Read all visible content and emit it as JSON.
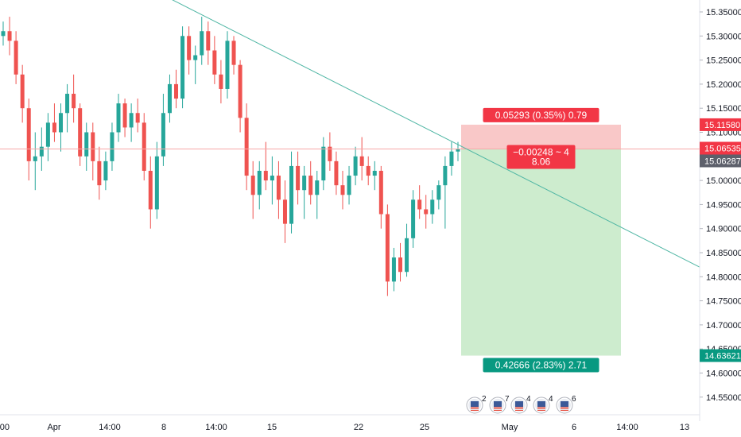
{
  "chart_data": {
    "type": "candlestick",
    "y_axis": {
      "ticks": [
        "15.35000",
        "15.30000",
        "15.25000",
        "15.20000",
        "15.15000",
        "15.10000",
        "15.05000",
        "15.00000",
        "14.95000",
        "14.90000",
        "14.85000",
        "14.80000",
        "14.75000",
        "14.70000",
        "14.65000",
        "14.60000",
        "14.55000"
      ],
      "range": [
        14.5,
        15.37
      ]
    },
    "x_axis": {
      "ticks": [
        "00",
        "Apr",
        "14:00",
        "8",
        "14:00",
        "15",
        "22",
        "25",
        "May",
        "6",
        "14:00",
        "13"
      ]
    },
    "price_labels": {
      "stop": "15.11580",
      "entry": "15.06535",
      "last": "15.06287",
      "target": "14.63621"
    },
    "position": {
      "stop_text": "0.05293 (0.35%) 0.79",
      "center_text_1": "−0.00248 ~ 4",
      "center_text_2": "8.06",
      "target_text": "0.42666 (2.83%) 2.71",
      "stop": 15.1158,
      "entry": 15.06535,
      "target": 14.63621
    },
    "trendline": {
      "start": 15.385,
      "end": 14.82
    },
    "candles": [
      [
        15.3,
        15.33,
        15.28,
        15.31
      ],
      [
        15.31,
        15.34,
        15.26,
        15.29
      ],
      [
        15.29,
        15.31,
        15.2,
        15.22
      ],
      [
        15.22,
        15.24,
        15.12,
        15.15
      ],
      [
        15.15,
        15.17,
        15.0,
        15.04
      ],
      [
        15.04,
        15.1,
        14.98,
        15.05
      ],
      [
        15.05,
        15.11,
        15.02,
        15.07
      ],
      [
        15.07,
        15.14,
        15.04,
        15.12
      ],
      [
        15.12,
        15.16,
        15.08,
        15.1
      ],
      [
        15.1,
        15.16,
        15.06,
        15.14
      ],
      [
        15.14,
        15.2,
        15.1,
        15.18
      ],
      [
        15.18,
        15.22,
        15.12,
        15.15
      ],
      [
        15.15,
        15.16,
        15.03,
        15.05
      ],
      [
        15.05,
        15.12,
        15.02,
        15.1
      ],
      [
        15.1,
        15.12,
        15.0,
        15.04
      ],
      [
        15.04,
        15.07,
        14.96,
        14.99
      ],
      [
        15.0,
        15.06,
        14.98,
        15.04
      ],
      [
        15.04,
        15.12,
        15.02,
        15.1
      ],
      [
        15.1,
        15.18,
        15.08,
        15.16
      ],
      [
        15.16,
        15.17,
        15.09,
        15.11
      ],
      [
        15.11,
        15.16,
        15.08,
        15.14
      ],
      [
        15.14,
        15.17,
        15.1,
        15.12
      ],
      [
        15.12,
        15.14,
        15.0,
        15.02
      ],
      [
        15.02,
        15.05,
        14.9,
        14.94
      ],
      [
        14.94,
        15.08,
        14.92,
        15.05
      ],
      [
        15.05,
        15.18,
        15.03,
        15.14
      ],
      [
        15.14,
        15.22,
        15.12,
        15.2
      ],
      [
        15.2,
        15.23,
        15.15,
        15.17
      ],
      [
        15.17,
        15.32,
        15.15,
        15.3
      ],
      [
        15.3,
        15.32,
        15.22,
        15.25
      ],
      [
        15.25,
        15.28,
        15.2,
        15.26
      ],
      [
        15.26,
        15.34,
        15.24,
        15.31
      ],
      [
        15.31,
        15.33,
        15.24,
        15.27
      ],
      [
        15.27,
        15.3,
        15.2,
        15.22
      ],
      [
        15.22,
        15.25,
        15.16,
        15.19
      ],
      [
        15.19,
        15.31,
        15.17,
        15.29
      ],
      [
        15.29,
        15.3,
        15.22,
        15.24
      ],
      [
        15.24,
        15.25,
        15.1,
        15.13
      ],
      [
        15.13,
        15.16,
        14.98,
        15.01
      ],
      [
        15.01,
        15.04,
        14.92,
        14.97
      ],
      [
        14.97,
        15.04,
        14.94,
        15.02
      ],
      [
        15.02,
        15.08,
        14.98,
        15.0
      ],
      [
        15.0,
        15.05,
        14.95,
        15.01
      ],
      [
        15.01,
        15.04,
        14.92,
        14.96
      ],
      [
        14.96,
        15.0,
        14.87,
        14.91
      ],
      [
        14.91,
        15.06,
        14.89,
        15.03
      ],
      [
        15.03,
        15.06,
        14.95,
        14.98
      ],
      [
        14.98,
        15.03,
        14.92,
        15.01
      ],
      [
        15.01,
        15.04,
        14.95,
        14.97
      ],
      [
        14.97,
        15.02,
        14.92,
        15.0
      ],
      [
        15.0,
        15.09,
        14.98,
        15.07
      ],
      [
        15.07,
        15.1,
        15.02,
        15.04
      ],
      [
        15.04,
        15.06,
        14.97,
        14.99
      ],
      [
        14.99,
        15.02,
        14.94,
        14.97
      ],
      [
        14.97,
        15.03,
        14.95,
        15.01
      ],
      [
        15.01,
        15.07,
        14.99,
        15.05
      ],
      [
        15.05,
        15.09,
        15.0,
        15.03
      ],
      [
        15.03,
        15.05,
        14.99,
        15.01
      ],
      [
        15.01,
        15.04,
        14.98,
        15.02
      ],
      [
        15.02,
        15.03,
        14.9,
        14.93
      ],
      [
        14.93,
        14.95,
        14.76,
        14.79
      ],
      [
        14.79,
        14.86,
        14.77,
        14.84
      ],
      [
        14.84,
        14.87,
        14.79,
        14.81
      ],
      [
        14.81,
        14.91,
        14.8,
        14.88
      ],
      [
        14.88,
        14.98,
        14.86,
        14.96
      ],
      [
        14.96,
        14.99,
        14.92,
        14.94
      ],
      [
        14.94,
        14.97,
        14.9,
        14.93
      ],
      [
        14.93,
        14.98,
        14.91,
        14.96
      ],
      [
        14.96,
        15.0,
        14.94,
        14.99
      ],
      [
        14.99,
        15.05,
        14.9,
        15.03
      ],
      [
        15.03,
        15.08,
        15.01,
        15.06
      ],
      [
        15.06,
        15.08,
        15.04,
        15.065
      ]
    ],
    "colors": {
      "up": "#26a69a",
      "down": "#ef5350",
      "stop_zone": "#f9c8c8",
      "target_zone": "#cdecce",
      "stop_label": "#f23645",
      "target_label": "#089981",
      "last_label": "#5d606b",
      "trendline": "#4fb6a4",
      "entry_line": "#f7a7a7"
    }
  },
  "events": {
    "icons": [
      "calendar-flag-icon",
      "calendar-flag-icon",
      "calendar-flag-icon",
      "calendar-flag-icon",
      "calendar-flag-icon"
    ],
    "counts": [
      "2",
      "7",
      "4",
      "4",
      "6"
    ]
  }
}
